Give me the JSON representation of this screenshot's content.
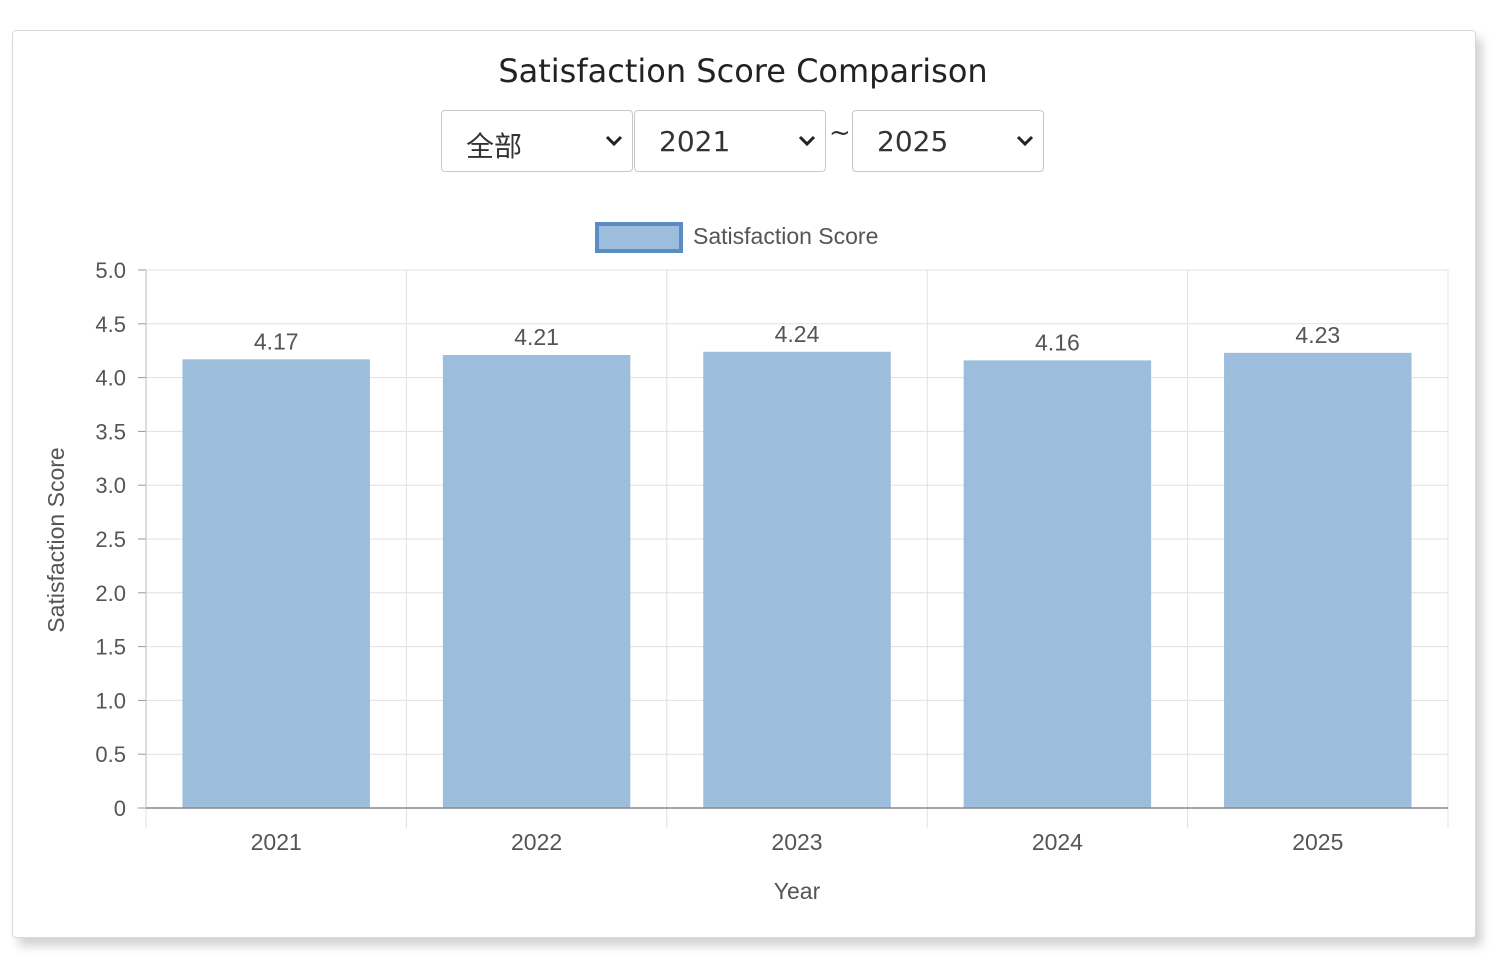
{
  "filters": {
    "category": "全部",
    "start_year": "2021",
    "separator": "~",
    "end_year": "2025"
  },
  "colors": {
    "bar_fill": "#9dbddd",
    "legend_border": "#5b8cc4",
    "grid": "#e0e0e0",
    "text": "#555555"
  },
  "chart_data": {
    "type": "bar",
    "title": "Satisfaction Score Comparison",
    "categories": [
      "2021",
      "2022",
      "2023",
      "2024",
      "2025"
    ],
    "series": [
      {
        "name": "Satisfaction Score",
        "values": [
          4.17,
          4.21,
          4.24,
          4.16,
          4.23
        ]
      }
    ],
    "data_labels": [
      "4.17",
      "4.21",
      "4.24",
      "4.16",
      "4.23"
    ],
    "xlabel": "Year",
    "ylabel": "Satisfaction Score",
    "ylim": [
      0,
      5
    ],
    "yticks": [
      "0",
      "0.5",
      "1.0",
      "1.5",
      "2.0",
      "2.5",
      "3.0",
      "3.5",
      "4.0",
      "4.5",
      "5.0"
    ],
    "grid": true,
    "legend": "top-center"
  }
}
